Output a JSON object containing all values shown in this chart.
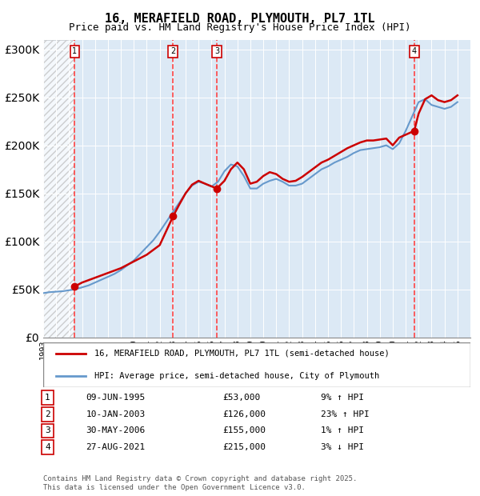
{
  "title": "16, MERAFIELD ROAD, PLYMOUTH, PL7 1TL",
  "subtitle": "Price paid vs. HM Land Registry's House Price Index (HPI)",
  "legend_line1": "16, MERAFIELD ROAD, PLYMOUTH, PL7 1TL (semi-detached house)",
  "legend_line2": "HPI: Average price, semi-detached house, City of Plymouth",
  "footer": "Contains HM Land Registry data © Crown copyright and database right 2025.\nThis data is licensed under the Open Government Licence v3.0.",
  "sales": [
    {
      "label": "1",
      "date": "09-JUN-1995",
      "price": 53000,
      "pct": "9%",
      "dir": "↑",
      "year_x": 1995.44
    },
    {
      "label": "2",
      "date": "10-JAN-2003",
      "price": 126000,
      "pct": "23%",
      "dir": "↑",
      "year_x": 2003.03
    },
    {
      "label": "3",
      "date": "30-MAY-2006",
      "price": 155000,
      "pct": "1%",
      "dir": "↑",
      "year_x": 2006.41
    },
    {
      "label": "4",
      "date": "27-AUG-2021",
      "price": 215000,
      "pct": "3%",
      "dir": "↓",
      "year_x": 2021.66
    }
  ],
  "ylim": [
    0,
    310000
  ],
  "xlim": [
    1993,
    2026
  ],
  "yticks": [
    0,
    50000,
    100000,
    150000,
    200000,
    250000,
    300000
  ],
  "ytick_labels": [
    "£0",
    "£50K",
    "£100K",
    "£150K",
    "£200K",
    "£250K",
    "£300K"
  ],
  "hatch_end_year": 1995.44,
  "bg_color": "#dce9f5",
  "hatch_color": "#aaaaaa",
  "red_line_color": "#cc0000",
  "blue_line_color": "#6699cc",
  "marker_color": "#cc0000",
  "vline_color": "#ff4444",
  "hpi_data_x": [
    1993,
    1993.5,
    1994,
    1994.5,
    1995,
    1995.5,
    1996,
    1996.5,
    1997,
    1997.5,
    1998,
    1998.5,
    1999,
    1999.5,
    2000,
    2000.5,
    2001,
    2001.5,
    2002,
    2002.5,
    2003,
    2003.5,
    2004,
    2004.5,
    2005,
    2005.5,
    2006,
    2006.5,
    2007,
    2007.5,
    2008,
    2008.5,
    2009,
    2009.5,
    2010,
    2010.5,
    2011,
    2011.5,
    2012,
    2012.5,
    2013,
    2013.5,
    2014,
    2014.5,
    2015,
    2015.5,
    2016,
    2016.5,
    2017,
    2017.5,
    2018,
    2018.5,
    2019,
    2019.5,
    2020,
    2020.5,
    2021,
    2021.5,
    2022,
    2022.5,
    2023,
    2023.5,
    2024,
    2024.5,
    2025
  ],
  "hpi_data_y": [
    46000,
    47000,
    47500,
    48000,
    49000,
    50000,
    52000,
    54000,
    57000,
    60000,
    63000,
    66000,
    70000,
    75000,
    80000,
    87000,
    94000,
    101000,
    110000,
    120000,
    130000,
    140000,
    150000,
    158000,
    162000,
    160000,
    157000,
    162000,
    173000,
    180000,
    178000,
    168000,
    155000,
    155000,
    160000,
    163000,
    165000,
    162000,
    158000,
    158000,
    160000,
    165000,
    170000,
    175000,
    178000,
    182000,
    185000,
    188000,
    192000,
    195000,
    196000,
    197000,
    198000,
    200000,
    196000,
    202000,
    215000,
    230000,
    245000,
    248000,
    242000,
    240000,
    238000,
    240000,
    245000
  ],
  "price_line_x": [
    1995.44,
    1996,
    1997,
    1998,
    1999,
    2000,
    2001,
    2002,
    2003.03,
    2003.5,
    2004,
    2004.5,
    2005,
    2005.5,
    2006.41,
    2007,
    2007.5,
    2008,
    2008.5,
    2009,
    2009.5,
    2010,
    2010.5,
    2011,
    2011.5,
    2012,
    2012.5,
    2013,
    2013.5,
    2014,
    2014.5,
    2015,
    2015.5,
    2016,
    2016.5,
    2017,
    2017.5,
    2018,
    2018.5,
    2019,
    2019.5,
    2020,
    2020.5,
    2021.66,
    2022,
    2022.5,
    2023,
    2023.5,
    2024,
    2024.5,
    2025
  ],
  "price_line_y": [
    53000,
    57000,
    62000,
    67000,
    72000,
    79000,
    86000,
    96000,
    126000,
    138000,
    150000,
    159000,
    163000,
    160000,
    155000,
    163000,
    175000,
    182000,
    175000,
    160000,
    162000,
    168000,
    172000,
    170000,
    165000,
    162000,
    163000,
    167000,
    172000,
    177000,
    182000,
    185000,
    189000,
    193000,
    197000,
    200000,
    203000,
    205000,
    205000,
    206000,
    207000,
    200000,
    208000,
    215000,
    233000,
    248000,
    252000,
    247000,
    245000,
    247000,
    252000
  ]
}
